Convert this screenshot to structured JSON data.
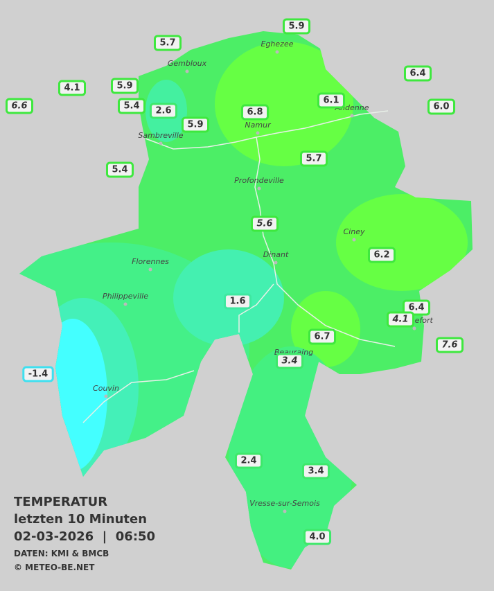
{
  "legend": {
    "title": "TEMPERATUR",
    "period": "letzten 10 Minuten",
    "datetime": "02-03-2026  |  06:50",
    "source": "DATEN: KMI & BMCB",
    "copyright": "© METEO-BE.NET"
  },
  "cities": [
    "Eghezee",
    "Gembloux",
    "Andenne",
    "Namur",
    "Sambreville",
    "Profondeville",
    "Ciney",
    "Florennes",
    "Dinant",
    "Philippeville",
    "Rochefort",
    "Beauraing",
    "Couvin",
    "Vresse-sur-Semois"
  ],
  "stations": [
    {
      "text": "5.9",
      "italic": false,
      "border": "#3ee83e"
    },
    {
      "text": "5.7",
      "italic": false,
      "border": "#3ee83e"
    },
    {
      "text": "6.4",
      "italic": false,
      "border": "#3ee83e"
    },
    {
      "text": "4.1",
      "italic": false,
      "border": "#3ee83e"
    },
    {
      "text": "5.9",
      "italic": false,
      "border": "#3ee83e"
    },
    {
      "text": "6.1",
      "italic": false,
      "border": "#3ee83e"
    },
    {
      "text": "6.6",
      "italic": true,
      "border": "#3ee83e"
    },
    {
      "text": "5.4",
      "italic": false,
      "border": "#3ee83e"
    },
    {
      "text": "2.6",
      "italic": false,
      "border": "#3ee86a"
    },
    {
      "text": "6.8",
      "italic": false,
      "border": "#3ee83e"
    },
    {
      "text": "6.0",
      "italic": false,
      "border": "#3ee83e"
    },
    {
      "text": "5.9",
      "italic": false,
      "border": "#3ee83e"
    },
    {
      "text": "5.7",
      "italic": false,
      "border": "#3ee83e"
    },
    {
      "text": "5.4",
      "italic": false,
      "border": "#3ee83e"
    },
    {
      "text": "5.6",
      "italic": true,
      "border": "#3ee83e"
    },
    {
      "text": "6.2",
      "italic": false,
      "border": "#3ee83e"
    },
    {
      "text": "1.6",
      "italic": false,
      "border": "#3ee8a0"
    },
    {
      "text": "6.4",
      "italic": false,
      "border": "#3ee83e"
    },
    {
      "text": "4.1",
      "italic": true,
      "border": "#3ee83e"
    },
    {
      "text": "6.7",
      "italic": false,
      "border": "#3ee83e"
    },
    {
      "text": "7.6",
      "italic": true,
      "border": "#3ee83e"
    },
    {
      "text": "3.4",
      "italic": true,
      "border": "#3ee86a"
    },
    {
      "text": "-1.4",
      "italic": false,
      "border": "#3ee0f0"
    },
    {
      "text": "2.4",
      "italic": false,
      "border": "#3ee86a"
    },
    {
      "text": "3.4",
      "italic": false,
      "border": "#3ee86a"
    },
    {
      "text": "4.0",
      "italic": false,
      "border": "#3ee86a"
    }
  ]
}
